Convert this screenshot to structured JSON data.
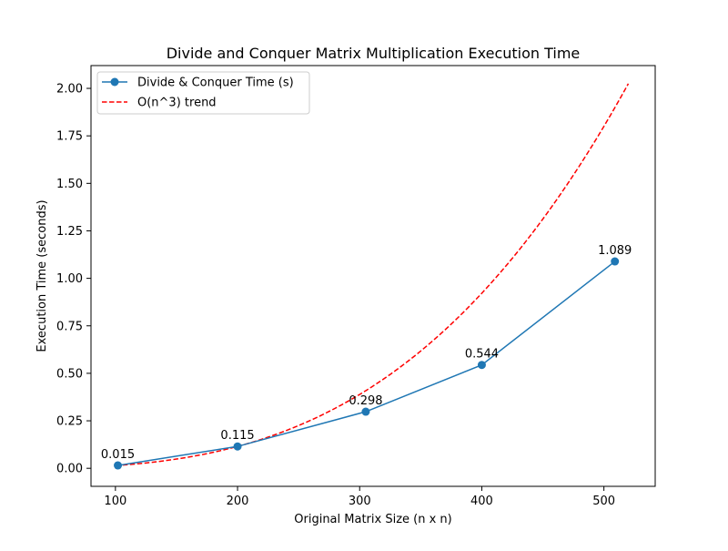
{
  "chart_data": {
    "type": "line",
    "title": "Divide and Conquer Matrix Multiplication Execution Time",
    "xlabel": "Original Matrix Size (n x n)",
    "ylabel": "Execution Time (seconds)",
    "xlim": [
      80,
      542
    ],
    "ylim": [
      -0.095,
      2.12
    ],
    "x_ticks": [
      100,
      200,
      300,
      400,
      500
    ],
    "y_ticks": [
      0.0,
      0.25,
      0.5,
      0.75,
      1.0,
      1.25,
      1.5,
      1.75,
      2.0
    ],
    "x_tick_labels": [
      "100",
      "200",
      "300",
      "400",
      "500"
    ],
    "y_tick_labels": [
      "0.00",
      "0.25",
      "0.50",
      "0.75",
      "1.00",
      "1.25",
      "1.50",
      "1.75",
      "2.00"
    ],
    "grid": false,
    "legend_position": "top-left",
    "series": [
      {
        "name": "Divide & Conquer Time (s)",
        "style": "solid-with-markers",
        "color": "#1f77b4",
        "x": [
          102,
          200,
          305,
          400,
          509
        ],
        "y": [
          0.015,
          0.115,
          0.298,
          0.544,
          1.089
        ],
        "labels": [
          "0.015",
          "0.115",
          "0.298",
          "0.544",
          "1.089"
        ]
      },
      {
        "name": "O(n^3) trend",
        "style": "dashed",
        "color": "#ff0000",
        "x_range": [
          100,
          520
        ],
        "coefficient": 1.44e-08
      }
    ]
  }
}
